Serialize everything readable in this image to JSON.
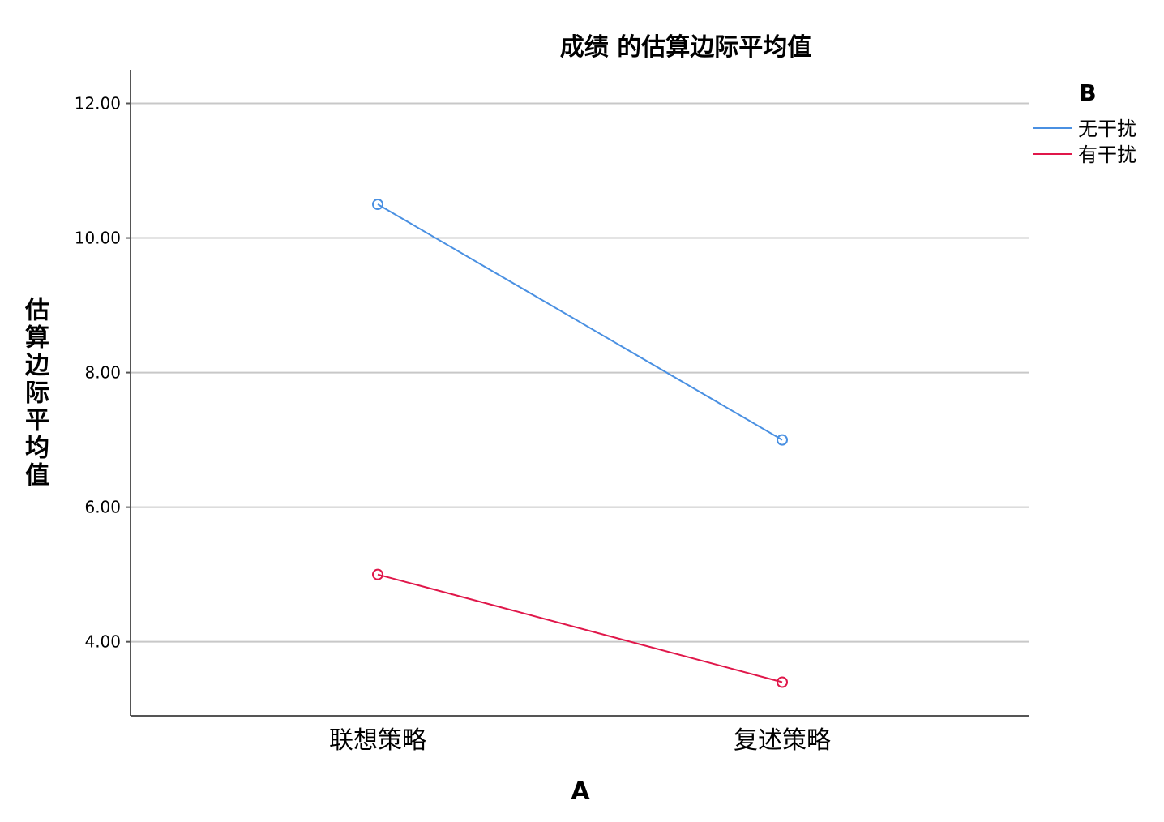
{
  "chart_data": {
    "type": "line",
    "title": "成绩 的估算边际平均值",
    "xlabel": "A",
    "ylabel": "估算边际平均值",
    "categories": [
      "联想策略",
      "复述策略"
    ],
    "ylim": [
      2.9,
      12.5
    ],
    "yticks": [
      4.0,
      6.0,
      8.0,
      10.0,
      12.0
    ],
    "ytick_labels": [
      "4.00",
      "6.00",
      "8.00",
      "10.00",
      "12.00"
    ],
    "grid": true,
    "legend": {
      "title": "B",
      "position": "top-right"
    },
    "series": [
      {
        "name": "无干扰",
        "color": "#4a90e2",
        "values": [
          10.5,
          7.0
        ]
      },
      {
        "name": "有干扰",
        "color": "#e0174a",
        "values": [
          5.0,
          3.4
        ]
      }
    ]
  }
}
